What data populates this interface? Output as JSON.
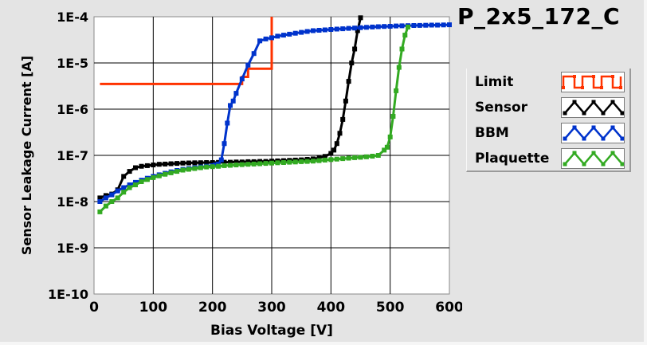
{
  "chart_data": {
    "type": "line",
    "title": "P_2x5_172_C",
    "xlabel": "Bias Voltage [V]",
    "ylabel": "Sensor Leakage Current [A]",
    "xlim": [
      0,
      600
    ],
    "ylim": [
      1e-10,
      0.0001
    ],
    "yscale": "log",
    "grid": true,
    "legend_position": "right",
    "x_ticks": [
      "0",
      "100",
      "200",
      "300",
      "400",
      "500",
      "600"
    ],
    "y_ticks": [
      "1E-10",
      "1E-9",
      "1E-8",
      "1E-7",
      "1E-6",
      "1E-5",
      "1E-4"
    ],
    "series": [
      {
        "name": "Limit",
        "color": "#ff3300",
        "marker": false,
        "step": true,
        "x": [
          10,
          250,
          250,
          260,
          260,
          300,
          300
        ],
        "y": [
          3.5e-06,
          3.5e-06,
          5e-06,
          5e-06,
          7.5e-06,
          7.5e-06,
          0.0001
        ]
      },
      {
        "name": "Sensor",
        "color": "#000000",
        "marker": true,
        "step": false,
        "x": [
          10,
          20,
          30,
          40,
          50,
          60,
          70,
          80,
          90,
          100,
          110,
          120,
          130,
          140,
          150,
          160,
          170,
          180,
          190,
          200,
          210,
          220,
          230,
          240,
          250,
          260,
          270,
          280,
          290,
          300,
          310,
          320,
          330,
          340,
          350,
          360,
          370,
          380,
          390,
          400,
          405,
          410,
          415,
          420,
          425,
          430,
          435,
          440,
          445,
          450
        ],
        "y": [
          1.2e-08,
          1.35e-08,
          1.45e-08,
          1.8e-08,
          3.5e-08,
          4.5e-08,
          5.4e-08,
          5.8e-08,
          6e-08,
          6.2e-08,
          6.4e-08,
          6.5e-08,
          6.6e-08,
          6.7e-08,
          6.8e-08,
          6.85e-08,
          6.9e-08,
          6.95e-08,
          7e-08,
          7e-08,
          7.05e-08,
          7.1e-08,
          7.1e-08,
          7.2e-08,
          7.2e-08,
          7.3e-08,
          7.3e-08,
          7.4e-08,
          7.4e-08,
          7.5e-08,
          7.6e-08,
          7.7e-08,
          7.8e-08,
          7.9e-08,
          8e-08,
          8.2e-08,
          8.4e-08,
          8.8e-08,
          9.5e-08,
          1.1e-07,
          1.3e-07,
          1.8e-07,
          3e-07,
          6e-07,
          1.5e-06,
          4e-06,
          1e-05,
          2e-05,
          5e-05,
          9.5e-05
        ]
      },
      {
        "name": "BBM",
        "color": "#0033cc",
        "marker": true,
        "step": false,
        "x": [
          10,
          20,
          30,
          40,
          50,
          60,
          70,
          80,
          90,
          100,
          110,
          120,
          130,
          140,
          150,
          160,
          170,
          180,
          190,
          200,
          205,
          210,
          215,
          220,
          225,
          230,
          235,
          240,
          250,
          260,
          270,
          280,
          290,
          300,
          310,
          320,
          330,
          340,
          350,
          360,
          370,
          380,
          390,
          400,
          410,
          420,
          430,
          440,
          450,
          460,
          470,
          480,
          490,
          500,
          510,
          520,
          530,
          540,
          550,
          560,
          570,
          580,
          590,
          600
        ],
        "y": [
          1e-08,
          1.2e-08,
          1.4e-08,
          1.7e-08,
          2e-08,
          2.3e-08,
          2.6e-08,
          2.9e-08,
          3.2e-08,
          3.5e-08,
          3.8e-08,
          4.1e-08,
          4.4e-08,
          4.7e-08,
          5e-08,
          5.2e-08,
          5.4e-08,
          5.6e-08,
          5.8e-08,
          6e-08,
          6.2e-08,
          6.5e-08,
          8e-08,
          1.8e-07,
          5e-07,
          1.2e-06,
          1.5e-06,
          2.2e-06,
          4.5e-06,
          9e-06,
          1.6e-05,
          3e-05,
          3.3e-05,
          3.5e-05,
          3.8e-05,
          4e-05,
          4.2e-05,
          4.4e-05,
          4.6e-05,
          4.8e-05,
          5e-05,
          5.1e-05,
          5.2e-05,
          5.3e-05,
          5.4e-05,
          5.5e-05,
          5.6e-05,
          5.7e-05,
          5.8e-05,
          5.9e-05,
          6e-05,
          6.1e-05,
          6.15e-05,
          6.2e-05,
          6.3e-05,
          6.35e-05,
          6.4e-05,
          6.45e-05,
          6.5e-05,
          6.55e-05,
          6.6e-05,
          6.6e-05,
          6.65e-05,
          6.7e-05
        ]
      },
      {
        "name": "Plaquette",
        "color": "#33aa22",
        "marker": true,
        "step": false,
        "x": [
          10,
          20,
          30,
          40,
          50,
          60,
          70,
          80,
          90,
          100,
          110,
          120,
          130,
          140,
          150,
          160,
          170,
          180,
          190,
          200,
          210,
          220,
          230,
          240,
          250,
          260,
          270,
          280,
          290,
          300,
          310,
          320,
          330,
          340,
          350,
          360,
          370,
          380,
          390,
          400,
          410,
          420,
          430,
          440,
          450,
          460,
          470,
          480,
          490,
          495,
          500,
          505,
          510,
          515,
          520,
          525,
          530
        ],
        "y": [
          6e-09,
          8e-09,
          1e-08,
          1.2e-08,
          1.6e-08,
          2e-08,
          2.3e-08,
          2.7e-08,
          3e-08,
          3.3e-08,
          3.6e-08,
          3.9e-08,
          4.2e-08,
          4.5e-08,
          4.8e-08,
          5e-08,
          5.2e-08,
          5.4e-08,
          5.6e-08,
          5.7e-08,
          5.8e-08,
          6e-08,
          6.1e-08,
          6.2e-08,
          6.3e-08,
          6.4e-08,
          6.5e-08,
          6.6e-08,
          6.7e-08,
          6.8e-08,
          6.9e-08,
          7e-08,
          7.1e-08,
          7.2e-08,
          7.3e-08,
          7.4e-08,
          7.5e-08,
          7.7e-08,
          7.9e-08,
          8.1e-08,
          8.3e-08,
          8.5e-08,
          8.7e-08,
          8.9e-08,
          9.1e-08,
          9.3e-08,
          9.6e-08,
          1e-07,
          1.3e-07,
          1.5e-07,
          2.5e-07,
          7e-07,
          2.5e-06,
          8e-06,
          2e-05,
          4e-05,
          6e-05
        ]
      }
    ]
  }
}
